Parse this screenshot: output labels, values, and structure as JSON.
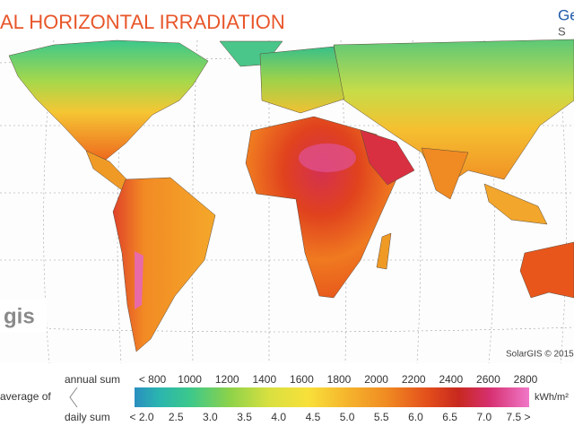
{
  "header": {
    "title": "AL HORIZONTAL IRRADIATION",
    "brand_top": "Ge",
    "brand_bottom": "S O"
  },
  "map": {
    "logo": "gis",
    "credit": "SolarGIS © 2015"
  },
  "legend": {
    "average_label": "average of",
    "annual_label": "annual sum",
    "annual_values": [
      "< 800",
      "1000",
      "1200",
      "1400",
      "1600",
      "1800",
      "2000",
      "2200",
      "2400",
      "2600",
      "2800"
    ],
    "unit": "kWh/m²",
    "daily_label": "daily sum",
    "daily_values": [
      "< 2.0",
      "2.5",
      "3.0",
      "3.5",
      "4.0",
      "4.5",
      "5.0",
      "5.5",
      "6.0",
      "6.5",
      "7.0",
      "7.5 >"
    ]
  }
}
